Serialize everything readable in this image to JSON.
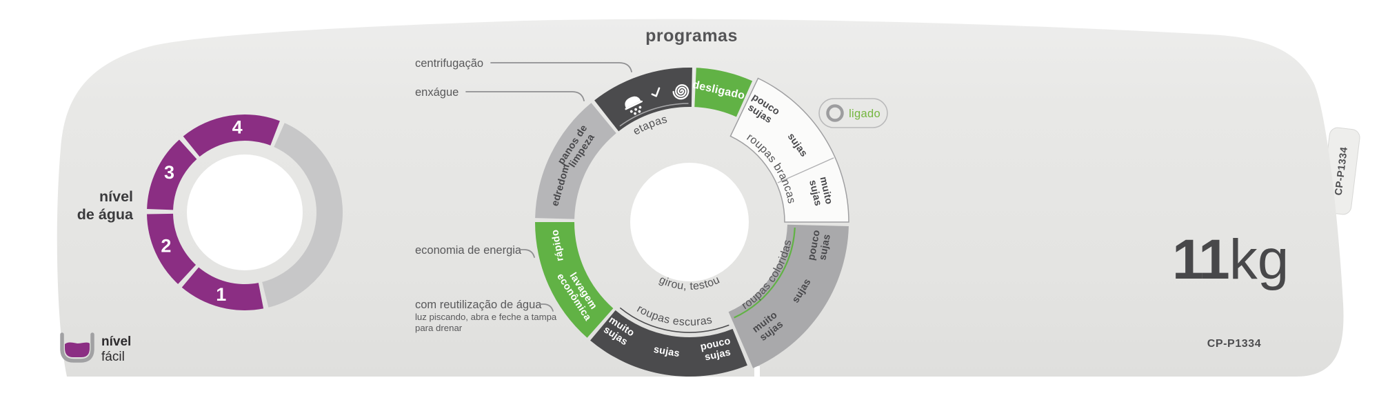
{
  "title": "programas",
  "colors": {
    "green": "#61b245",
    "purple": "#8b2e83",
    "dark": "#4b4b4d",
    "gray_light": "#b6b6b8",
    "gray_mid": "#a9a9ab",
    "white_seg": "#fbfbfa",
    "water_gray": "#c7c7c8",
    "ligado_green": "#74b63f"
  },
  "pointers": {
    "centrifugacao": "centrifugação",
    "enxague": "enxágue",
    "economia": "economia de energia",
    "reutilizacao": "com reutilização de água",
    "reutilizacao_note1": "luz piscando, abra e feche a tampa",
    "reutilizacao_note2": "para drenar"
  },
  "dial": {
    "off": "desligado",
    "stages": "etapas",
    "slogan": "girou, testou",
    "whites": "roupas brancas",
    "colored": "roupas coloridas",
    "darks": "roupas escuras",
    "soil": {
      "pouco1": "pouco",
      "pouco2": "sujas",
      "sujas": "sujas",
      "muito1": "muito",
      "muito2": "sujas"
    },
    "rapido": "rápido",
    "lavagem1": "lavagem",
    "lavagem2": "econômica",
    "edredom": "edredom",
    "panos1": "panos de",
    "panos2": "limpeza"
  },
  "indicator": {
    "label": "ligado"
  },
  "water": {
    "label1": "nível",
    "label2": "de água",
    "l1": "1",
    "l2": "2",
    "l3": "3",
    "l4": "4"
  },
  "logo": {
    "line1": "nível",
    "line2": "fácil"
  },
  "branding": {
    "capacity_value": "11",
    "capacity_unit": "kg",
    "model": "CP-P1334",
    "side_model": "CP-P1334"
  }
}
